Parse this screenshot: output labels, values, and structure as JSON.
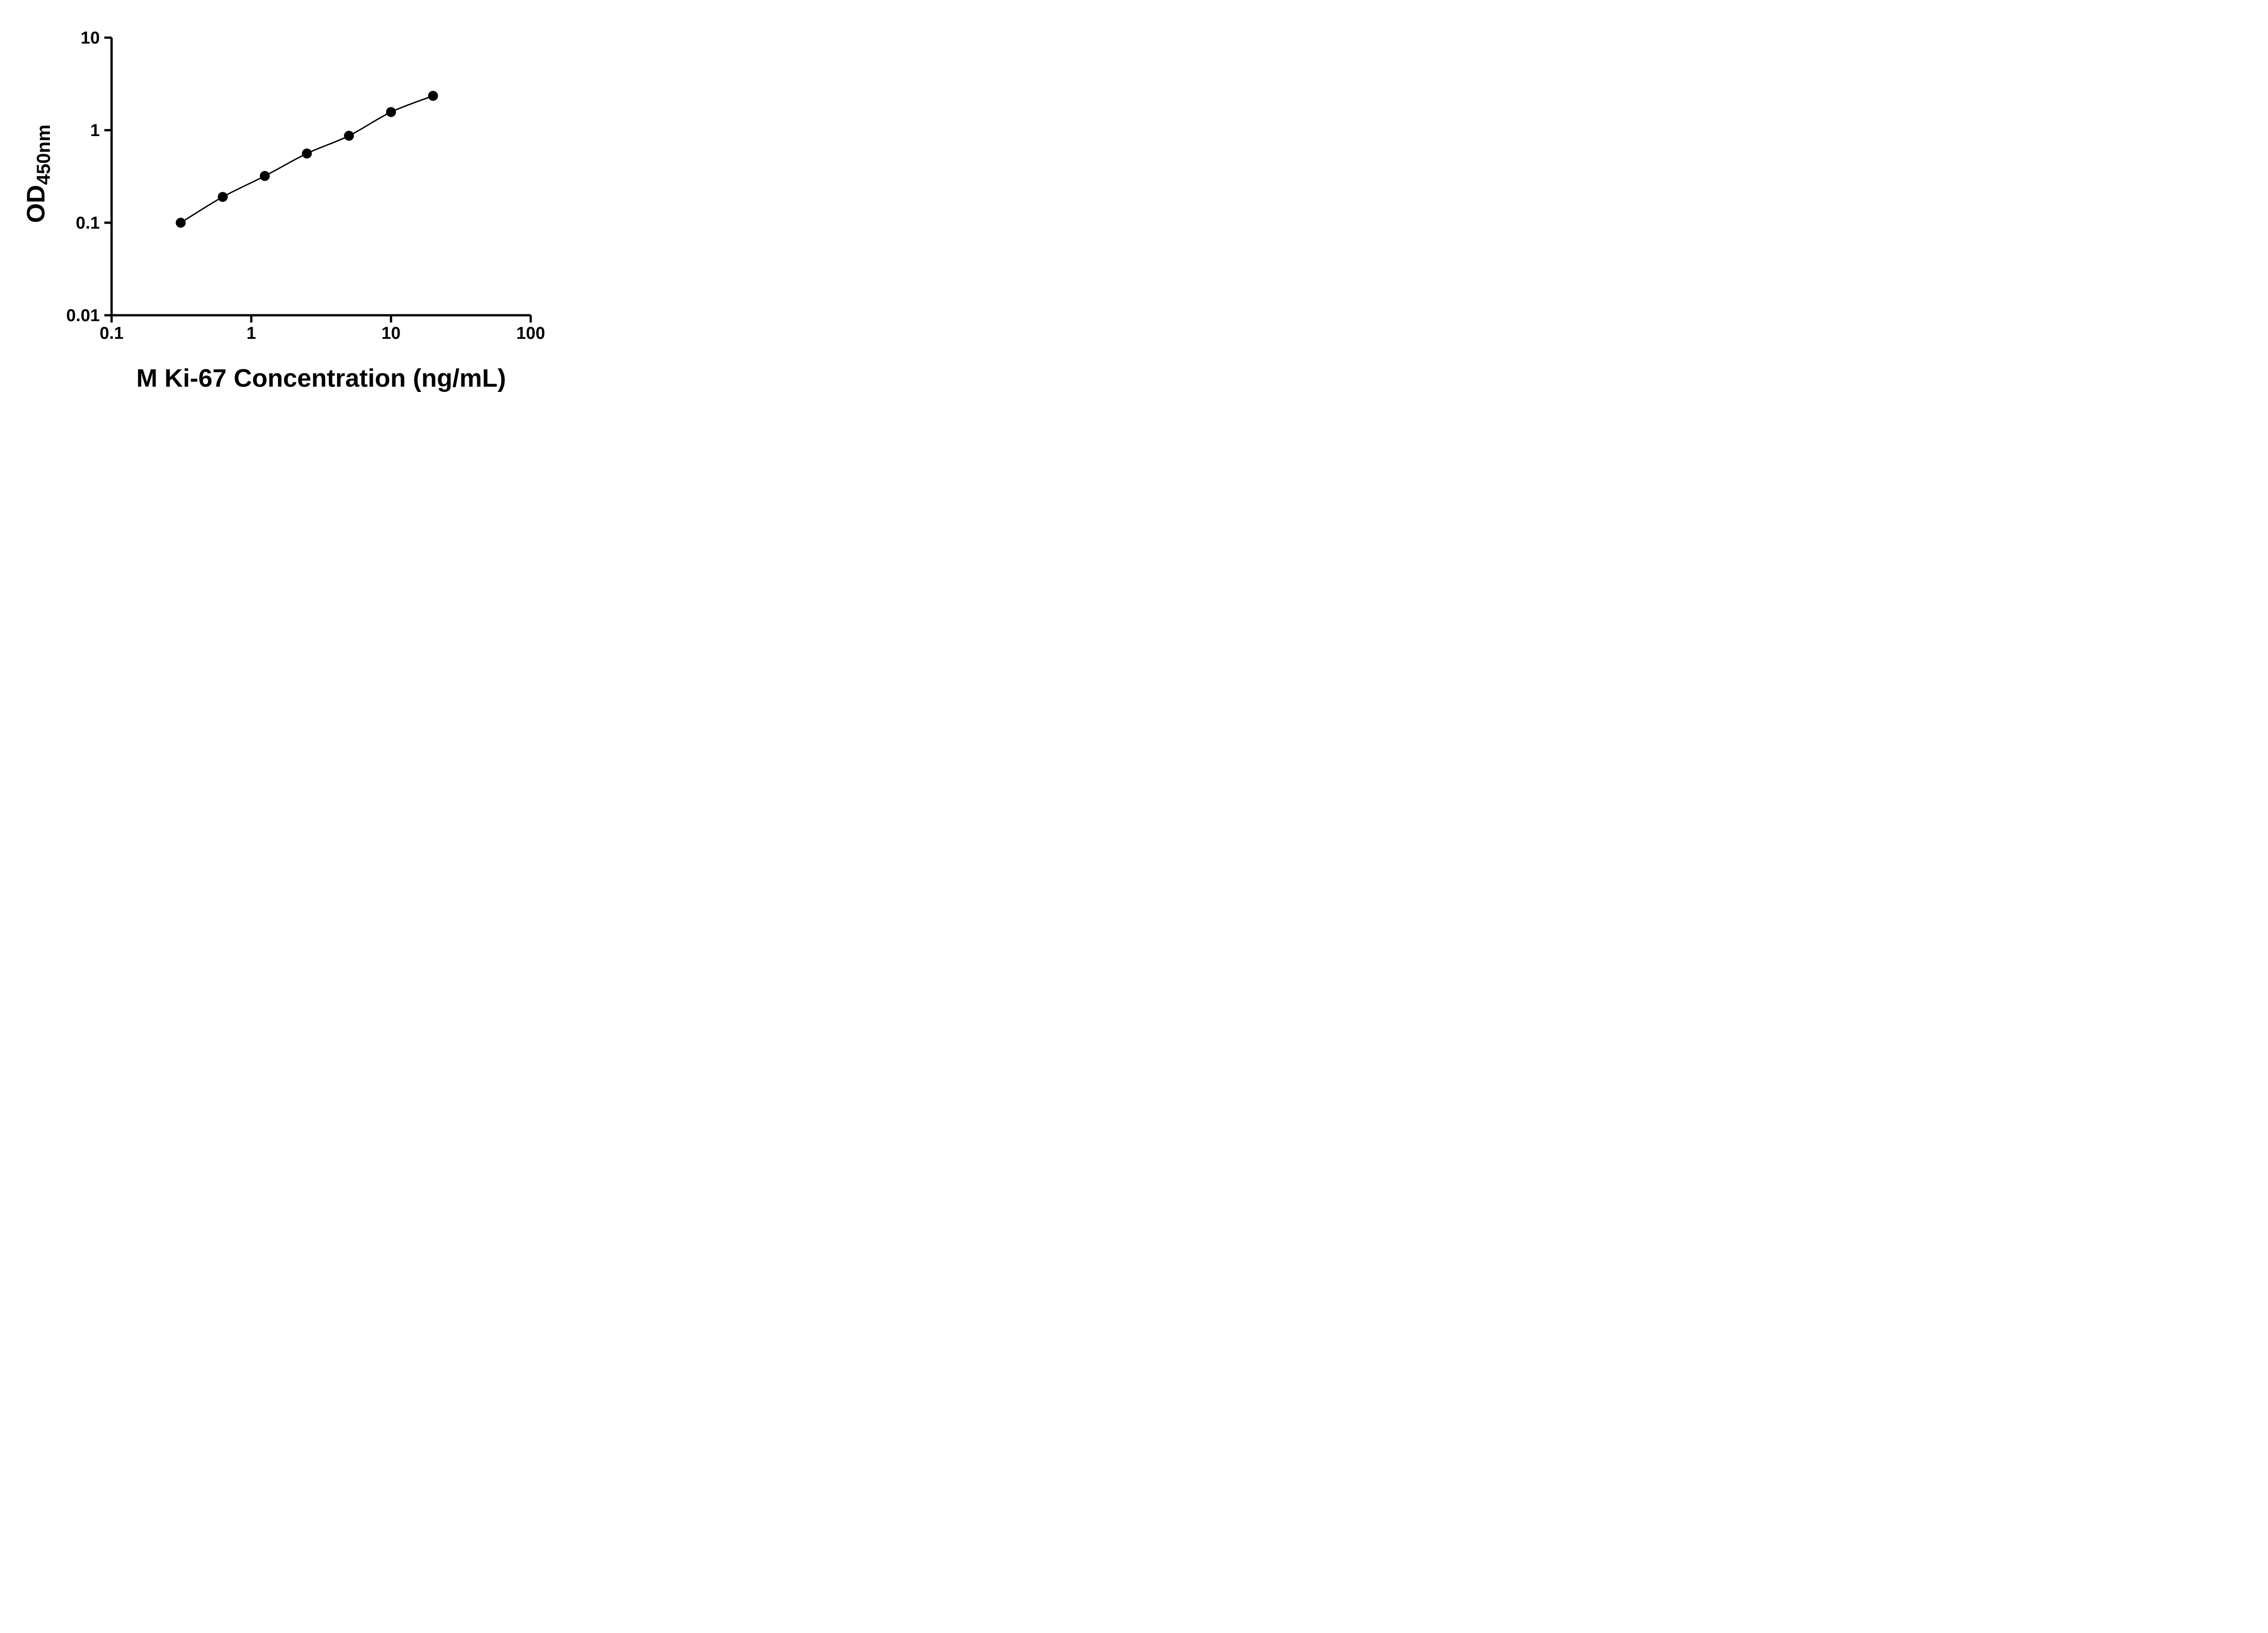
{
  "chart_data": {
    "type": "scatter",
    "title": "",
    "xlabel": "M Ki-67 Concentration (ng/mL)",
    "ylabel_main": "OD",
    "ylabel_sub": "450nm",
    "x_scale": "log10",
    "y_scale": "log10",
    "xlim": [
      0.1,
      100
    ],
    "ylim": [
      0.01,
      10
    ],
    "x_ticks": [
      0.1,
      1,
      10,
      100
    ],
    "x_tick_labels": [
      "0.1",
      "1",
      "10",
      "100"
    ],
    "y_ticks": [
      10,
      1,
      0.1,
      0.01
    ],
    "y_tick_labels": [
      "10",
      "1",
      "0.1",
      "0.01"
    ],
    "grid": false,
    "legend": false,
    "colors": {
      "axis": "#000000",
      "line": "#000000",
      "marker": "#000000",
      "background": "#ffffff"
    },
    "series": [
      {
        "marker": "filled-circle",
        "line": "smooth",
        "x": [
          0.3125,
          0.625,
          1.25,
          2.5,
          5,
          10,
          20
        ],
        "y": [
          0.1,
          0.19,
          0.32,
          0.56,
          0.87,
          1.57,
          2.35
        ]
      }
    ]
  }
}
